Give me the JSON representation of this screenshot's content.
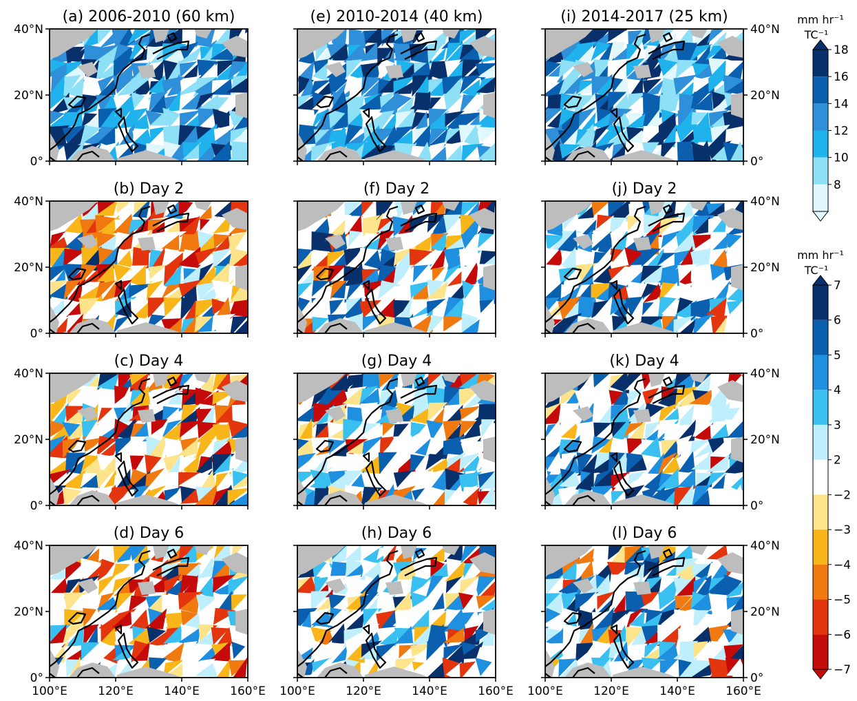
{
  "figure": {
    "panels": [
      {
        "id": "a",
        "title": "(a) 2006-2010 (60 km)",
        "kind": "mean"
      },
      {
        "id": "e",
        "title": "(e) 2010-2014 (40 km)",
        "kind": "mean"
      },
      {
        "id": "i",
        "title": "(i) 2014-2017 (25 km)",
        "kind": "mean"
      },
      {
        "id": "b",
        "title": "(b) Day 2",
        "kind": "anomaly"
      },
      {
        "id": "f",
        "title": "(f) Day 2",
        "kind": "anomaly"
      },
      {
        "id": "j",
        "title": "(j) Day 2",
        "kind": "anomaly"
      },
      {
        "id": "c",
        "title": "(c) Day 4",
        "kind": "anomaly"
      },
      {
        "id": "g",
        "title": "(g) Day 4",
        "kind": "anomaly"
      },
      {
        "id": "k",
        "title": "(k) Day 4",
        "kind": "anomaly"
      },
      {
        "id": "d",
        "title": "(d) Day 6",
        "kind": "anomaly"
      },
      {
        "id": "h",
        "title": "(h) Day 6",
        "kind": "anomaly"
      },
      {
        "id": "l",
        "title": "(l) Day 6",
        "kind": "anomaly"
      }
    ],
    "lat_ticks": [
      "40°N",
      "20°N",
      "0°"
    ],
    "lon_ticks": [
      "100°E",
      "120°E",
      "140°E",
      "160°E"
    ],
    "land_color": "#bdbdbd",
    "coast_color": "#000000"
  },
  "colorbars": {
    "top": {
      "unit_line1": "mm hr⁻¹",
      "unit_line2": "TC⁻¹",
      "levels": [
        "18",
        "16",
        "14",
        "12",
        "10",
        "8"
      ],
      "colors": [
        "#08306b",
        "#0a5fae",
        "#2f8fd8",
        "#1fb2ec",
        "#8ee0f7",
        "#dff7fd"
      ],
      "extend": "both"
    },
    "bottom": {
      "unit_line1": "mm hr⁻¹",
      "unit_line2": "TC⁻¹",
      "levels": [
        "7",
        "6",
        "5",
        "4",
        "3",
        "2",
        "−2",
        "−3",
        "−4",
        "−5",
        "−6",
        "−7"
      ],
      "colors": [
        "#08306b",
        "#0a5fae",
        "#1f8fe0",
        "#39c0f0",
        "#bfeefc",
        "#ffffff",
        "#fde38a",
        "#f8b61a",
        "#f07a10",
        "#e3350e",
        "#c50a0a"
      ],
      "extend": "both"
    }
  }
}
